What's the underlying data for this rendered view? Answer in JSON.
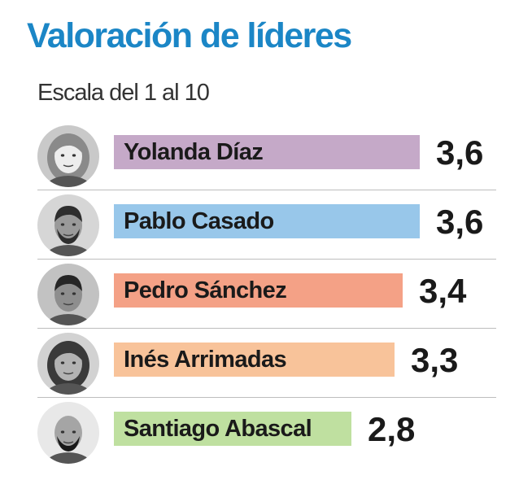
{
  "title": "Valoración de líderes",
  "subtitle": "Escala del 1 al 10",
  "colors": {
    "title": "#1b86c6",
    "yolanda": "#c5a9c8",
    "pablo": "#98c7ea",
    "pedro": "#f4a186",
    "ines": "#f8c39a",
    "santiago": "#bfe0a0"
  },
  "chart_data": {
    "type": "bar",
    "orientation": "horizontal",
    "title": "Valoración de líderes",
    "subtitle": "Escala del 1 al 10",
    "xlim": [
      0,
      10
    ],
    "categories": [
      "Yolanda Díaz",
      "Pablo Casado",
      "Pedro Sánchez",
      "Inés Arrimadas",
      "Santiago Abascal"
    ],
    "values": [
      3.6,
      3.6,
      3.4,
      3.3,
      2.8
    ],
    "value_labels": [
      "3,6",
      "3,6",
      "3,4",
      "3,3",
      "2,8"
    ],
    "bar_colors": [
      "#c5a9c8",
      "#98c7ea",
      "#f4a186",
      "#f8c39a",
      "#bfe0a0"
    ],
    "avatar_icons": [
      "yolanda-diaz-photo",
      "pablo-casado-photo",
      "pedro-sanchez-photo",
      "ines-arrimadas-photo",
      "santiago-abascal-photo"
    ]
  }
}
